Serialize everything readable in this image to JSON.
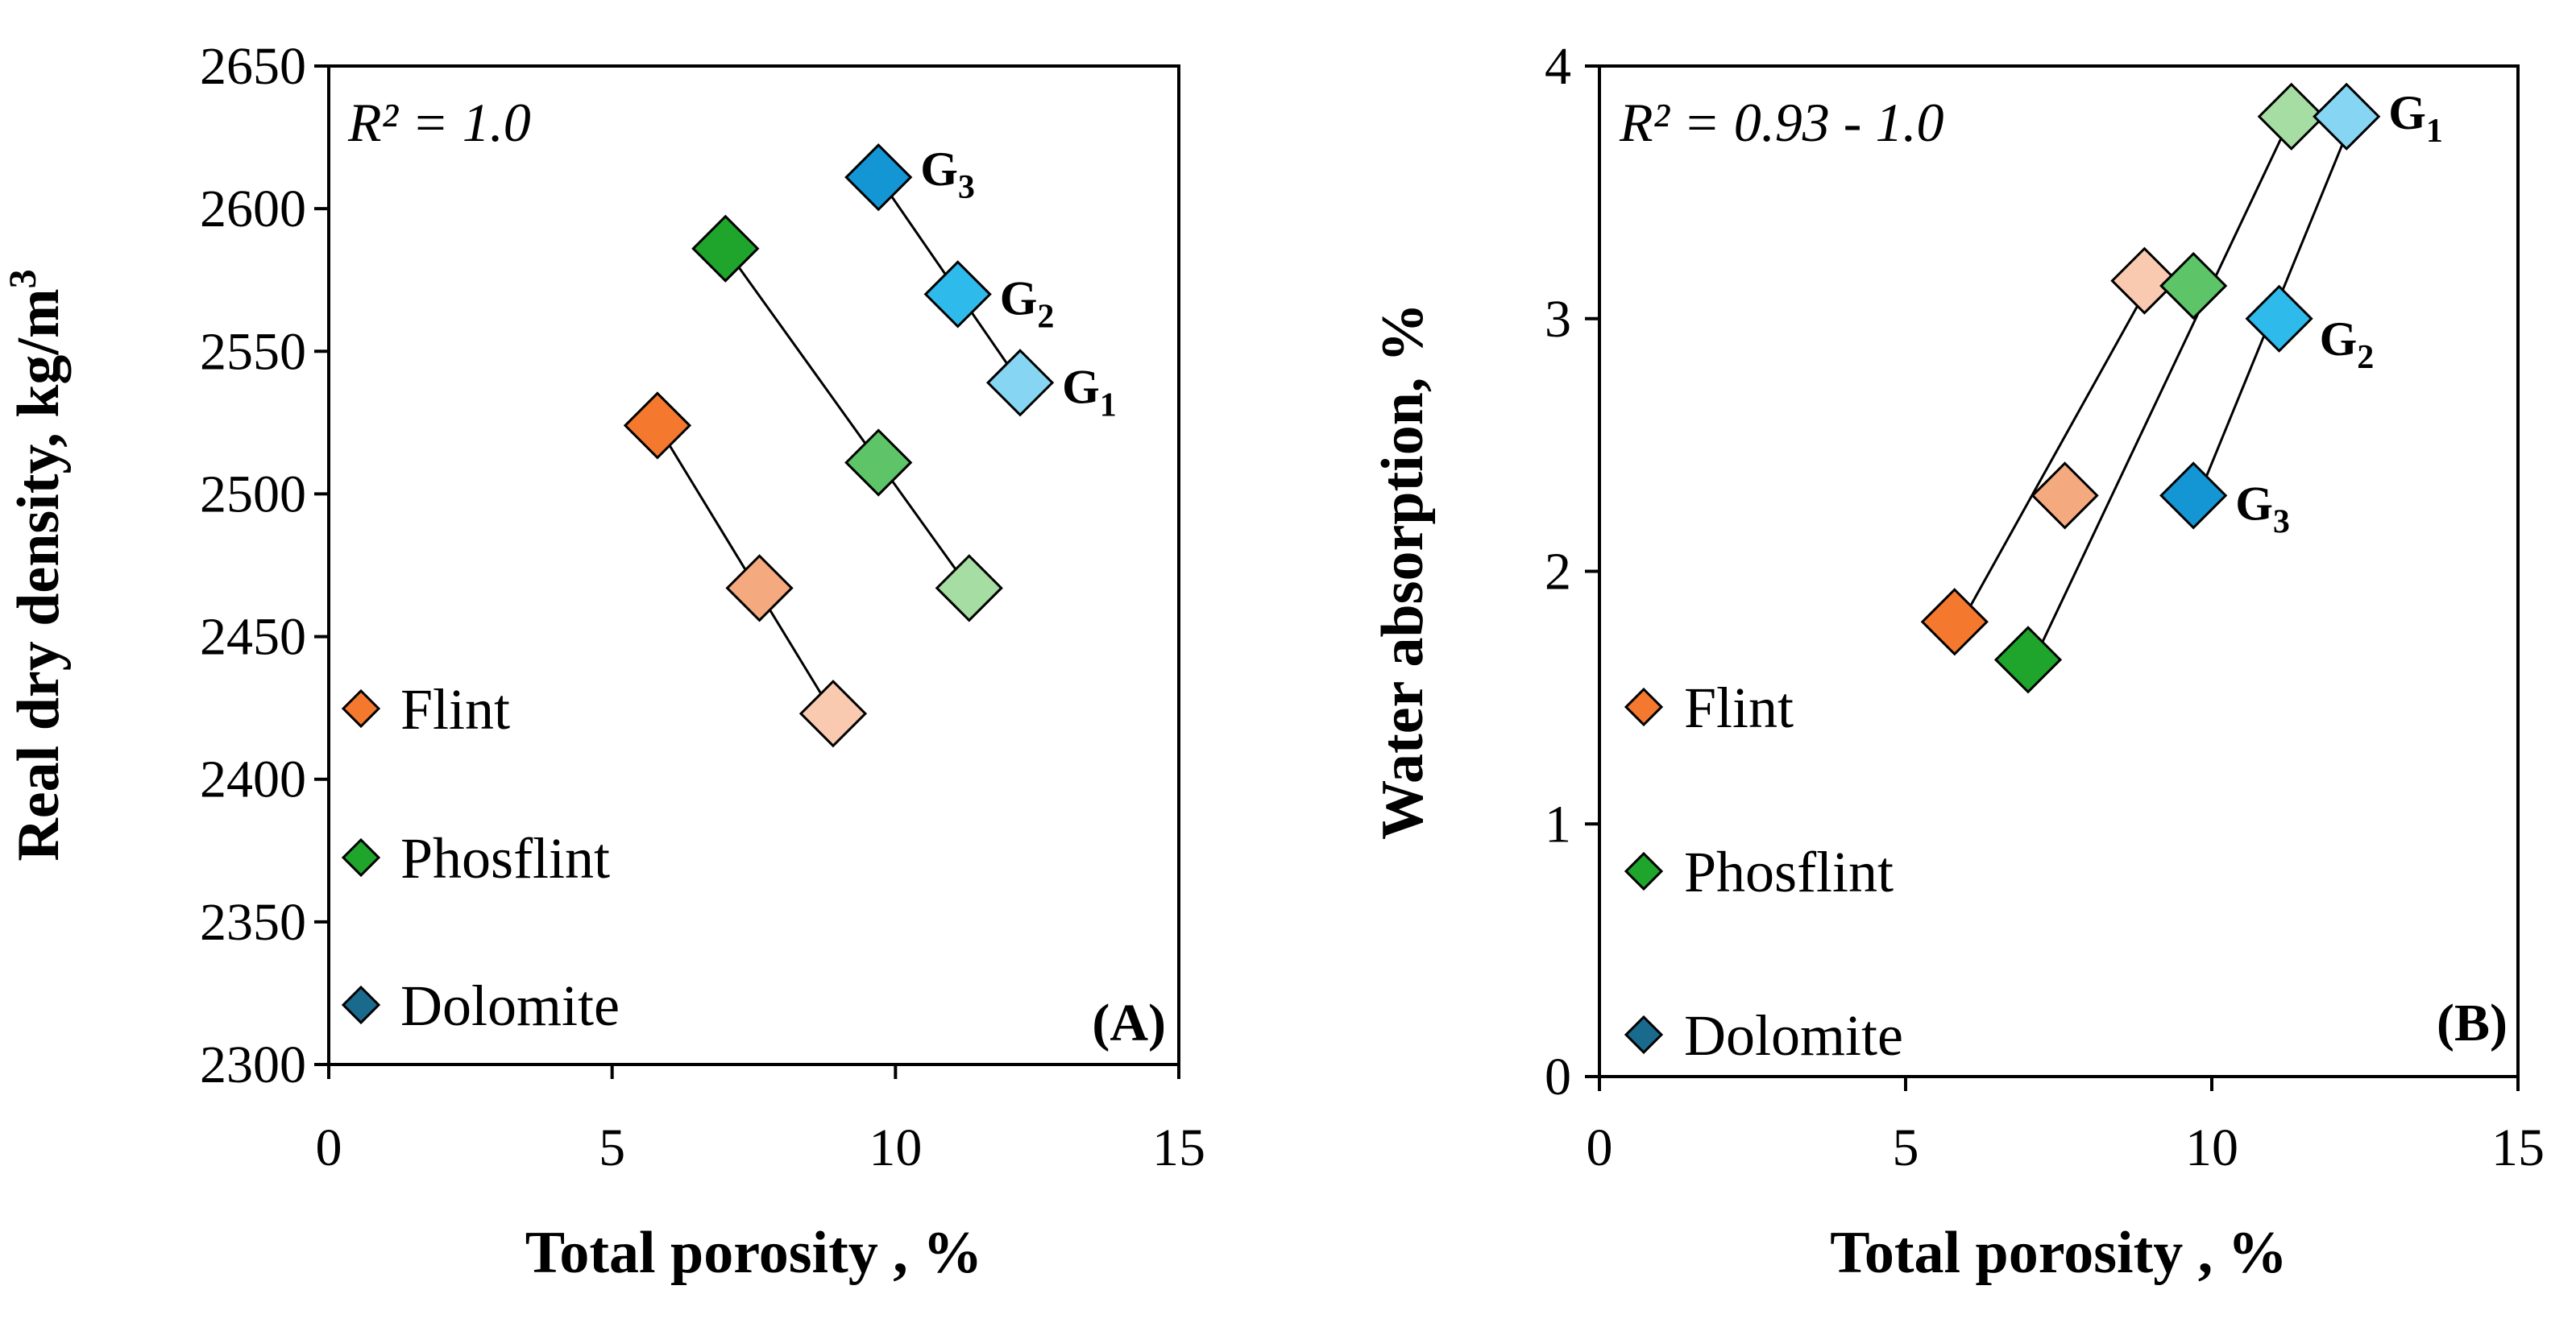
{
  "chart_data": [
    {
      "type": "scatter",
      "panel": "(A)",
      "annotation": "R² = 1.0",
      "xlabel": "Total porosity , %",
      "ylabel": "Real dry density, kg/m",
      "ylabel_sup": "3",
      "xlim": [
        0,
        15
      ],
      "ylim": [
        2300,
        2650
      ],
      "xticks": [
        0,
        5,
        10,
        15
      ],
      "yticks": [
        2300,
        2350,
        2400,
        2450,
        2500,
        2550,
        2600,
        2650
      ],
      "legend": [
        "Flint",
        "Phosflint",
        "Dolomite"
      ],
      "legend_colors": [
        "#F4782E",
        "#1FA52B",
        "#1A6A8E"
      ],
      "series": [
        {
          "name": "Flint",
          "points": [
            {
              "x": 5.8,
              "y": 2524,
              "color": "#F4782E"
            },
            {
              "x": 7.6,
              "y": 2467,
              "color": "#F4A97F"
            },
            {
              "x": 8.9,
              "y": 2423,
              "color": "#F9CAB0"
            }
          ],
          "trendline": {
            "x": [
              5.8,
              8.9
            ],
            "y": [
              2524,
              2423
            ]
          }
        },
        {
          "name": "Phosflint",
          "points": [
            {
              "x": 7.0,
              "y": 2586,
              "color": "#1FA52B"
            },
            {
              "x": 9.7,
              "y": 2511,
              "color": "#5DC468"
            },
            {
              "x": 11.3,
              "y": 2467,
              "color": "#A6DDA2"
            }
          ],
          "trendline": {
            "x": [
              7.0,
              11.3
            ],
            "y": [
              2586,
              2467
            ]
          }
        },
        {
          "name": "Dolomite",
          "points": [
            {
              "x": 9.7,
              "y": 2611,
              "color": "#1596D4",
              "label": "G",
              "sub": "3"
            },
            {
              "x": 11.1,
              "y": 2570,
              "color": "#2EBBEB",
              "label": "G",
              "sub": "2"
            },
            {
              "x": 12.2,
              "y": 2539,
              "color": "#85D5F3",
              "label": "G",
              "sub": "1"
            }
          ],
          "trendline": {
            "x": [
              9.7,
              12.2
            ],
            "y": [
              2611,
              2539
            ]
          }
        }
      ]
    },
    {
      "type": "scatter",
      "panel": "(B)",
      "annotation": "R² = 0.93 - 1.0",
      "xlabel": "Total porosity , %",
      "ylabel": "Water absorption, %",
      "xlim": [
        0,
        15
      ],
      "ylim": [
        0,
        4
      ],
      "xticks": [
        0,
        5,
        10,
        15
      ],
      "yticks": [
        0,
        1,
        2,
        3,
        4
      ],
      "legend": [
        "Flint",
        "Phosflint",
        "Dolomite"
      ],
      "legend_colors": [
        "#F4782E",
        "#1FA52B",
        "#1A6A8E"
      ],
      "series": [
        {
          "name": "Flint",
          "points": [
            {
              "x": 5.8,
              "y": 1.8,
              "color": "#F4782E"
            },
            {
              "x": 7.6,
              "y": 2.3,
              "color": "#F4A97F"
            },
            {
              "x": 8.9,
              "y": 3.15,
              "color": "#F9CAB0"
            }
          ],
          "trendline": {
            "x": [
              5.8,
              8.9
            ],
            "y": [
              1.75,
              3.1
            ]
          }
        },
        {
          "name": "Phosflint",
          "points": [
            {
              "x": 7.0,
              "y": 1.65,
              "color": "#1FA52B"
            },
            {
              "x": 9.7,
              "y": 3.13,
              "color": "#5DC468"
            },
            {
              "x": 11.3,
              "y": 3.8,
              "color": "#A6DDA2"
            }
          ],
          "trendline": {
            "x": [
              7.0,
              11.3
            ],
            "y": [
              1.6,
              3.8
            ]
          }
        },
        {
          "name": "Dolomite",
          "points": [
            {
              "x": 9.7,
              "y": 2.3,
              "color": "#1596D4",
              "label": "G",
              "sub": "3"
            },
            {
              "x": 11.1,
              "y": 3.0,
              "color": "#2EBBEB",
              "label": "G",
              "sub": "2"
            },
            {
              "x": 12.2,
              "y": 3.8,
              "color": "#85D5F3",
              "label": "G",
              "sub": "1"
            }
          ],
          "trendline": {
            "x": [
              9.7,
              12.2
            ],
            "y": [
              2.25,
              3.73
            ]
          }
        }
      ]
    }
  ]
}
